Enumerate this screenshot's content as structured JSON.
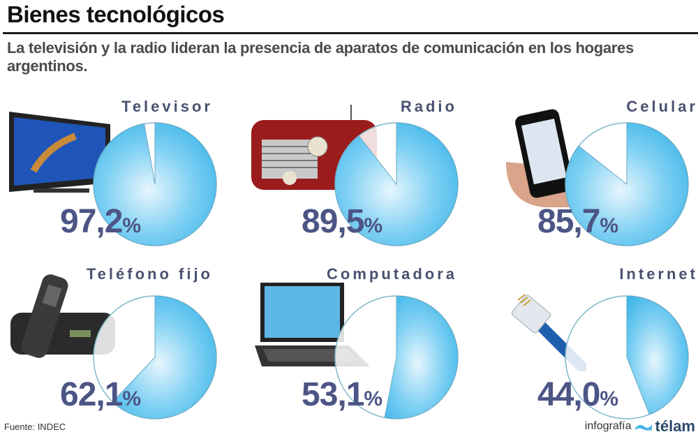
{
  "header": {
    "title": "Bienes tecnológicos",
    "subtitle": "La televisión y la radio lideran la presencia de aparatos de comunicación en los hogares argentinos."
  },
  "panels": [
    {
      "label": "Televisor",
      "value_text": "97,2",
      "percent_sign": "%",
      "icon": "tv-icon"
    },
    {
      "label": "Radio",
      "value_text": "89,5",
      "percent_sign": "%",
      "icon": "radio-icon"
    },
    {
      "label": "Celular",
      "value_text": "85,7",
      "percent_sign": "%",
      "icon": "cellphone-icon"
    },
    {
      "label": "Teléfono fijo",
      "value_text": "62,1",
      "percent_sign": "%",
      "icon": "landline-phone-icon"
    },
    {
      "label": "Computadora",
      "value_text": "53,1",
      "percent_sign": "%",
      "icon": "laptop-icon"
    },
    {
      "label": "Internet",
      "value_text": "44,0",
      "percent_sign": "%",
      "icon": "ethernet-cable-icon"
    }
  ],
  "footer": {
    "source": "Fuente: INDEC",
    "credit_prefix": "infografía",
    "brand": "télam"
  },
  "colors": {
    "pie_fill": "#3fb6ea",
    "pie_light": "#e6f6fd",
    "label": "#4a5170",
    "value": "#4c5585"
  },
  "chart_data": {
    "type": "pie",
    "title": "Bienes tecnológicos",
    "subtitle": "La televisión y la radio lideran la presencia de aparatos de comunicación en los hogares argentinos.",
    "unit": "% of households",
    "categories": [
      "Televisor",
      "Radio",
      "Celular",
      "Teléfono fijo",
      "Computadora",
      "Internet"
    ],
    "values": [
      97.2,
      89.5,
      85.7,
      62.1,
      53.1,
      44.0
    ],
    "source": "INDEC"
  }
}
